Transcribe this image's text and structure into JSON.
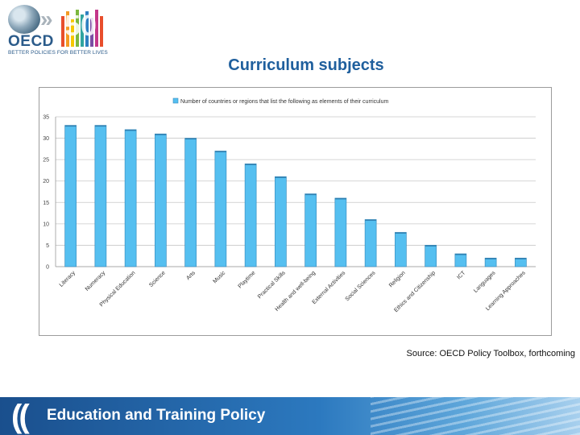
{
  "logo": {
    "name": "OECD",
    "tagline": "BETTER POLICIES FOR BETTER LIVES",
    "number": "50"
  },
  "slide_title": "Curriculum subjects",
  "source": "Source: OECD Policy Toolbox, forthcoming",
  "footer": {
    "title": "Education and Training Policy"
  },
  "colors": {
    "bar": "#55bff0",
    "bar_stroke": "#3b8fc0",
    "title": "#1f5f9d",
    "footer": "#1a4f8d"
  },
  "chart_data": {
    "type": "bar",
    "title": "",
    "xlabel": "",
    "ylabel": "",
    "legend": "Number of countries or regions that list the following as elements of their curriculum",
    "legend_position": "top",
    "categories": [
      "Literacy",
      "Numeracy",
      "Physical Education",
      "Science",
      "Arts",
      "Music",
      "Playtime",
      "Practical Skills",
      "Health and well-being",
      "External Activities",
      "Social Sciences",
      "Religion",
      "Ethics and Citizenship",
      "ICT",
      "Languages",
      "Learning Approaches"
    ],
    "values": [
      33,
      33,
      32,
      31,
      30,
      27,
      24,
      21,
      17,
      16,
      11,
      8,
      5,
      3,
      2,
      2
    ],
    "ylim": [
      0,
      35
    ],
    "yticks": [
      0,
      5,
      10,
      15,
      20,
      25,
      30,
      35
    ],
    "grid": true
  }
}
